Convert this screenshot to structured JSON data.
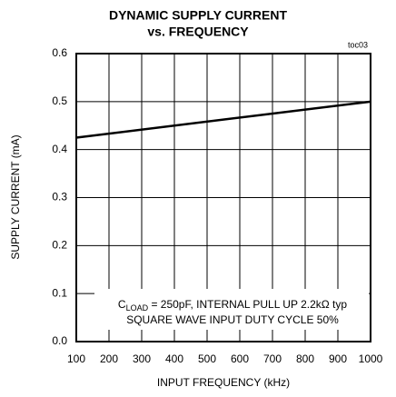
{
  "chart_data": {
    "type": "line",
    "title": [
      "DYNAMIC SUPPLY CURRENT",
      "vs. FREQUENCY"
    ],
    "figure_id": "toc03",
    "x_label": "INPUT FREQUENCY (kHz)",
    "y_label": "SUPPLY CURRENT (mA)",
    "annotation": {
      "line1": [
        "C",
        "LOAD",
        " = 250pF, INTERNAL PULL UP 2.2kΩ typ"
      ],
      "line2": "SQUARE WAVE INPUT DUTY CYCLE 50%"
    },
    "x": [
      100,
      1000
    ],
    "series": [
      {
        "color": "#000000",
        "values": [
          0.425,
          0.5
        ]
      }
    ],
    "xlim": [
      100,
      1000
    ],
    "xticks": [
      100,
      200,
      300,
      400,
      500,
      600,
      700,
      800,
      900,
      1000
    ],
    "ylim": [
      0,
      0.6
    ],
    "yticks": [
      {
        "value": 0,
        "label": "0.0"
      },
      0.1,
      0.2,
      0.3,
      0.4,
      0.5,
      0.6
    ],
    "grid": true
  }
}
